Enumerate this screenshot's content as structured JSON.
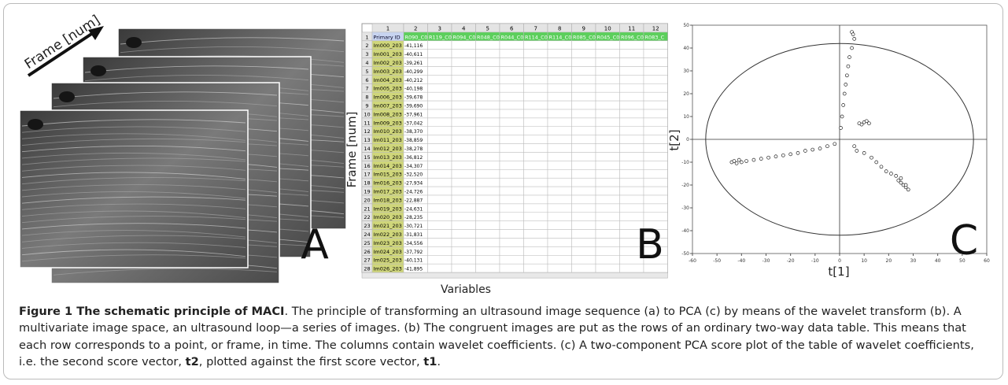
{
  "figure": {
    "panel_a": {
      "axis_label": "Frame [num]",
      "letter": "A"
    },
    "panel_b": {
      "column_numbers": [
        "1",
        "2",
        "3",
        "4",
        "5",
        "6",
        "7",
        "8",
        "9",
        "10",
        "11",
        "12"
      ],
      "headers": [
        "Primary ID",
        "R090_C0",
        "R119_C0",
        "R094_C0",
        "R048_C0",
        "R044_C0",
        "R114_C0",
        "R114_C0",
        "R085_C0",
        "R045_C0",
        "R096_C0",
        "R083_C"
      ],
      "row_numbers": [
        "1",
        "2",
        "3",
        "4",
        "5",
        "6",
        "7",
        "8",
        "9",
        "10",
        "11",
        "12",
        "13",
        "14",
        "15",
        "16",
        "17",
        "18",
        "19",
        "20",
        "21",
        "22",
        "23",
        "24",
        "25",
        "26",
        "27",
        "28"
      ],
      "row_ids": [
        "Im000_203",
        "Im001_203",
        "Im002_203",
        "Im003_203",
        "Im004_203",
        "Im005_203",
        "Im006_203",
        "Im007_203",
        "Im008_203",
        "Im009_203",
        "Im010_203",
        "Im011_203",
        "Im012_203",
        "Im013_203",
        "Im014_203",
        "Im015_203",
        "Im016_203",
        "Im017_203",
        "Im018_203",
        "Im019_203",
        "Im020_203",
        "Im021_203",
        "Im022_203",
        "Im023_203",
        "Im024_203",
        "Im025_203",
        "Im026_203"
      ],
      "first_values": [
        "-41,116",
        "-40,611",
        "-39,261",
        "-40,299",
        "-40,212",
        "-40,198",
        "-39,678",
        "-39,690",
        "-37,961",
        "-37,042",
        "-38,370",
        "-38,859",
        "-38,278",
        "-36,812",
        "-34,307",
        "-32,520",
        "-27,934",
        "-24,726",
        "-22,887",
        "-24,631",
        "-28,235",
        "-30,721",
        "-31,831",
        "-34,556",
        "-37,792",
        "-40,131",
        "-41,895"
      ],
      "y_label": "Frame [num]",
      "x_label": "Variables",
      "letter": "B"
    },
    "panel_c": {
      "x_label": "t[1]",
      "y_label": "t[2]",
      "letter": "C",
      "xlim": [
        -60,
        60
      ],
      "ylim": [
        -50,
        50
      ],
      "xticks": [
        -60,
        -50,
        -40,
        -30,
        -20,
        -10,
        0,
        10,
        20,
        30,
        40,
        50,
        60
      ],
      "yticks": [
        -50,
        -40,
        -30,
        -20,
        -10,
        0,
        10,
        20,
        30,
        40,
        50
      ],
      "x": [
        -44,
        -43,
        -42,
        -41,
        -40,
        -38,
        -35,
        -32,
        -29,
        -26,
        -23,
        -20,
        -17,
        -14,
        -11,
        -8,
        -5,
        -2,
        5,
        5.5,
        6,
        5,
        4,
        3.5,
        3,
        2.5,
        2,
        1.5,
        1,
        0.5,
        8,
        10,
        12,
        9,
        11,
        6,
        7,
        10,
        13,
        15,
        17,
        19,
        21,
        23,
        24,
        25,
        26,
        27,
        28,
        27,
        25
      ],
      "y": [
        -10,
        -9.5,
        -10.5,
        -9,
        -10,
        -9.5,
        -9,
        -8.5,
        -8,
        -7.5,
        -7,
        -6.5,
        -6,
        -5,
        -4.5,
        -4,
        -3,
        -2,
        47,
        46,
        44,
        40,
        36,
        32,
        28,
        24,
        20,
        15,
        10,
        5,
        7,
        7.5,
        7,
        6.5,
        8,
        -3,
        -5,
        -6,
        -8,
        -10,
        -12,
        -14,
        -15,
        -16,
        -18,
        -19,
        -20,
        -21,
        -22,
        -20,
        -17
      ]
    },
    "caption": {
      "title": "Figure 1 The schematic principle of MACI",
      "text1": ". The principle of transforming an ultrasound image sequence (a) to PCA (c) by means of the wavelet transform (b). A multivariate image space, an ultrasound loop—a series of images. (b) The congruent images are put as the rows of an ordinary two-way data table. This means that each row corresponds to a point, or frame, in time. The columns contain wavelet coefficients. (c) A two-component PCA score plot of the table of wavelet coefficients, i.e. the second score vector, ",
      "bold1": "t2",
      "text2": ", plotted against the first score vector, ",
      "bold2": "t1",
      "text3": "."
    }
  }
}
